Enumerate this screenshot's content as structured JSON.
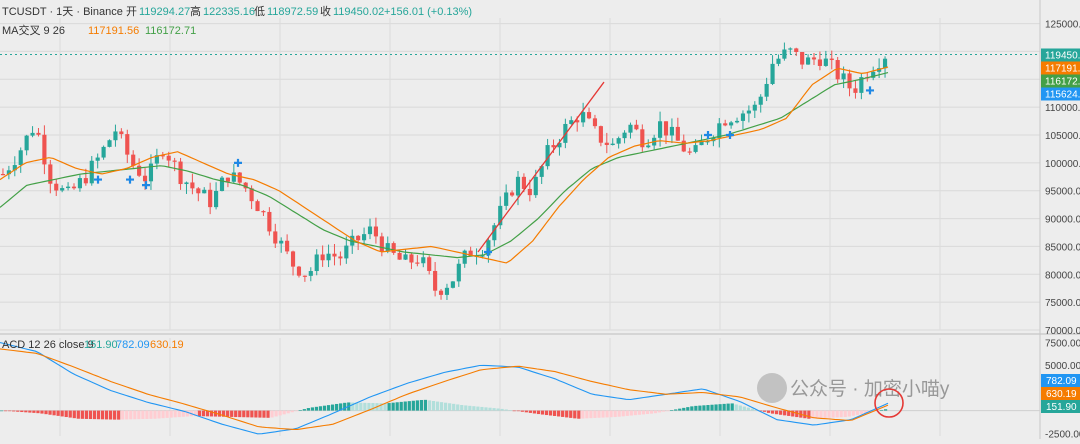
{
  "header": {
    "symbol": "TCUSDT · 1天 · Binance",
    "open_label": "开",
    "open": "119294.27",
    "high_label": "高",
    "high": "122335.16",
    "low_label": "低",
    "low": "118972.59",
    "close_label": "收",
    "close": "119450.02",
    "change": "+156.01 (+0.13%)"
  },
  "ma_legend": {
    "label": "MA交叉 9 26",
    "fast": "117191.56",
    "slow": "116172.71"
  },
  "macd_legend": {
    "label": "ACD 12 26 close 9",
    "hist": "151.90",
    "macd": "782.09",
    "signal": "630.19"
  },
  "price_axis": {
    "ticks": [
      "125000.00",
      "120000.00",
      "115000.00",
      "110000.00",
      "105000.00",
      "100000.00",
      "95000.00",
      "90000.00",
      "85000.00",
      "80000.00",
      "75000.00",
      "70000.00"
    ],
    "badges": [
      {
        "text": "119450.",
        "color": "#26a69a"
      },
      {
        "text": "117191.",
        "color": "#f57c00"
      },
      {
        "text": "116172.",
        "color": "#43a047"
      },
      {
        "text": "115624.",
        "color": "#2196f3"
      }
    ]
  },
  "macd_axis": {
    "ticks": [
      "7500.00",
      "5000.00",
      "-2500.00"
    ],
    "badges": [
      {
        "text": "782.09",
        "color": "#2196f3"
      },
      {
        "text": "630.19",
        "color": "#f57c00"
      },
      {
        "text": "151.90",
        "color": "#26a69a"
      }
    ]
  },
  "watermark": "公众号 · 加密小喵y",
  "colors": {
    "up": "#26a69a",
    "down": "#ef5350",
    "ma_fast": "#f57c00",
    "ma_slow": "#43a047",
    "macd": "#2196f3",
    "signal": "#f57c00",
    "trend": "#e53935"
  },
  "chart_data": {
    "type": "candlestick",
    "price_ylim": [
      70000,
      126000
    ],
    "macd_ylim": [
      -2800,
      8000
    ],
    "price_path": [
      98000,
      102000,
      107000,
      97000,
      94000,
      97000,
      101000,
      106000,
      100000,
      97000,
      103000,
      98000,
      95000,
      93000,
      98000,
      96000,
      92000,
      87000,
      82000,
      80000,
      84000,
      83000,
      86000,
      88000,
      84000,
      82000,
      83000,
      77000,
      79000,
      84000,
      85000,
      91000,
      97000,
      95000,
      102000,
      106000,
      109000,
      105000,
      103000,
      107000,
      104000,
      107000,
      104000,
      101000,
      105000,
      108000,
      109000,
      110000,
      118000,
      120000,
      118000,
      119000,
      116000,
      113000,
      117000,
      119500
    ],
    "ma_fast_path": [
      97000,
      100000,
      101000,
      99000,
      98000,
      99000,
      101000,
      102000,
      100000,
      98000,
      97000,
      95000,
      92000,
      89000,
      86000,
      84000,
      84500,
      85000,
      84000,
      83000,
      82000,
      86000,
      92000,
      97000,
      101000,
      103000,
      104000,
      103500,
      104000,
      105000,
      106000,
      108000,
      114000,
      117000,
      116000,
      117200
    ],
    "ma_slow_path": [
      92000,
      96000,
      97000,
      98000,
      98500,
      99000,
      99500,
      98500,
      97000,
      96000,
      94000,
      91000,
      88000,
      86000,
      85000,
      84000,
      83500,
      83000,
      83500,
      86000,
      90000,
      95000,
      99000,
      101000,
      102000,
      103000,
      104000,
      105000,
      106500,
      108000,
      111000,
      114000,
      115000,
      116200
    ],
    "cross_markers_price": [
      97000,
      97000,
      96000,
      100000,
      84000,
      105000,
      105000,
      113000
    ],
    "macd_line_path": [
      7500,
      6500,
      4000,
      2200,
      900,
      -100,
      -1500,
      -2600,
      -2000,
      -300,
      1500,
      3000,
      4200,
      5000,
      4800,
      3500,
      1800,
      1200,
      1800,
      2400,
      1000,
      -1000,
      -1600,
      -1000,
      800
    ],
    "signal_line_path": [
      6800,
      6300,
      4800,
      3200,
      1800,
      700,
      -500,
      -1800,
      -2100,
      -1500,
      100,
      1800,
      3200,
      4500,
      4900,
      4300,
      3200,
      2300,
      1800,
      2000,
      1500,
      300,
      -800,
      -1100,
      600
    ],
    "macd_histogram_path": [
      0,
      -300,
      -900,
      -1000,
      -900,
      -600,
      -700,
      -800,
      300,
      900,
      800,
      1200,
      600,
      200,
      -400,
      -900,
      -700,
      -300,
      500,
      800,
      -300,
      -900,
      -700,
      150
    ]
  }
}
